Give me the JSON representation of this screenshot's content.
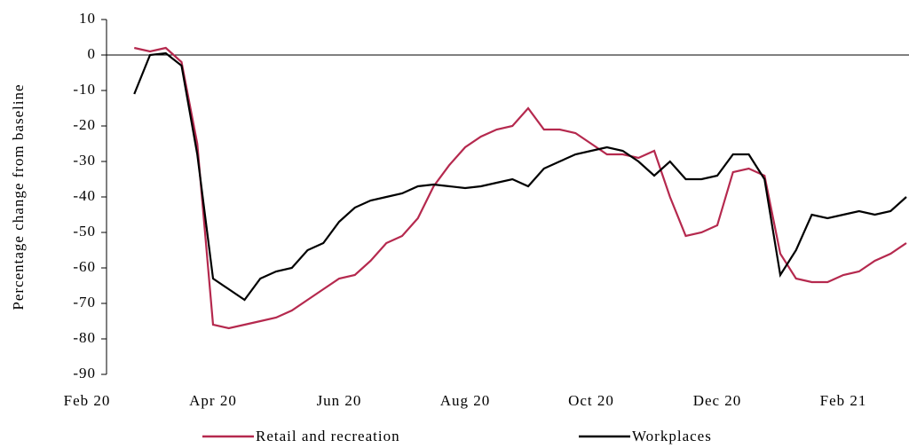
{
  "chart_data": {
    "type": "line",
    "y_label": "Percentage change from baseline",
    "categories": [
      "Feb 20",
      null,
      null,
      null,
      null,
      null,
      null,
      null,
      "Apr 20",
      null,
      null,
      null,
      null,
      null,
      null,
      null,
      "Jun 20",
      null,
      null,
      null,
      null,
      null,
      null,
      null,
      "Aug 20",
      null,
      null,
      null,
      null,
      null,
      null,
      null,
      "Oct 20",
      null,
      null,
      null,
      null,
      null,
      null,
      null,
      "Dec 20",
      null,
      null,
      null,
      null,
      null,
      null,
      null,
      "Feb 21",
      null,
      null,
      null,
      null
    ],
    "series": [
      {
        "name": "Retail and recreation",
        "color": "#b5294e",
        "values": [
          null,
          null,
          null,
          2,
          1,
          2,
          -2,
          -25,
          -76,
          -77,
          -76,
          -75,
          -74,
          -72,
          -69,
          -66,
          -63,
          -62,
          -58,
          -53,
          -51,
          -46,
          -37,
          -31,
          -26,
          -23,
          -21,
          -20,
          -15,
          -21,
          -21,
          -22,
          -25,
          -28,
          -28,
          -29,
          -27,
          -40,
          -51,
          -50,
          -48,
          -33,
          -32,
          -34,
          -56,
          -63,
          -64,
          -64,
          -62,
          -61,
          -58,
          -56,
          -53
        ]
      },
      {
        "name": "Workplaces",
        "color": "#000000",
        "values": [
          null,
          null,
          null,
          -11,
          0,
          0.5,
          -3,
          -28,
          -63,
          -66,
          -69,
          -63,
          -61,
          -60,
          -55,
          -53,
          -47,
          -43,
          -41,
          -40,
          -39,
          -37,
          -36.5,
          -37,
          -37.5,
          -37,
          -36,
          -35,
          -37,
          -32,
          -30,
          -28,
          -27,
          -26,
          -27,
          -30,
          -34,
          -30,
          -35,
          -35,
          -34,
          -28,
          -28,
          -35,
          -62,
          -55,
          -45,
          -46,
          -45,
          -44,
          -45,
          -44,
          -40
        ]
      }
    ],
    "ylim": [
      -90,
      10
    ],
    "yticks": [
      10,
      0,
      -10,
      -20,
      -30,
      -40,
      -50,
      -60,
      -70,
      -80,
      -90
    ],
    "legend": "bottom"
  }
}
